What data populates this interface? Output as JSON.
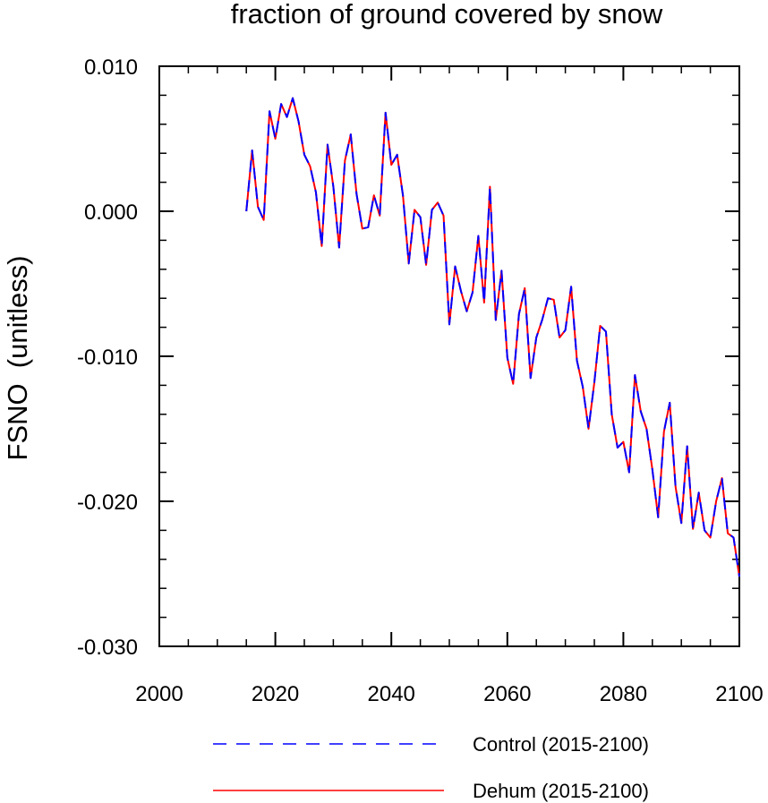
{
  "chart_data": {
    "type": "line",
    "title": "fraction of ground covered by snow",
    "xlabel": "",
    "ylabel": "FSNO  (unitless)",
    "xlim": [
      2000,
      2100
    ],
    "ylim": [
      -0.03,
      0.01
    ],
    "x_ticks": [
      2000,
      2020,
      2040,
      2060,
      2080,
      2100
    ],
    "x_tick_labels": [
      "2000",
      "2020",
      "2040",
      "2060",
      "2080",
      "2100"
    ],
    "y_ticks": [
      0.01,
      0.0,
      -0.01,
      -0.02,
      -0.03
    ],
    "y_tick_labels": [
      "0.010",
      "0.000",
      "-0.010",
      "-0.020",
      "-0.030"
    ],
    "grid": false,
    "legend_position": "bottom",
    "x": [
      2015,
      2016,
      2017,
      2018,
      2019,
      2020,
      2021,
      2022,
      2023,
      2024,
      2025,
      2026,
      2027,
      2028,
      2029,
      2030,
      2031,
      2032,
      2033,
      2034,
      2035,
      2036,
      2037,
      2038,
      2039,
      2040,
      2041,
      2042,
      2043,
      2044,
      2045,
      2046,
      2047,
      2048,
      2049,
      2050,
      2051,
      2052,
      2053,
      2054,
      2055,
      2056,
      2057,
      2058,
      2059,
      2060,
      2061,
      2062,
      2063,
      2064,
      2065,
      2066,
      2067,
      2068,
      2069,
      2070,
      2071,
      2072,
      2073,
      2074,
      2075,
      2076,
      2077,
      2078,
      2079,
      2080,
      2081,
      2082,
      2083,
      2084,
      2085,
      2086,
      2087,
      2088,
      2089,
      2090,
      2091,
      2092,
      2093,
      2094,
      2095,
      2096,
      2097,
      2098,
      2099,
      2100
    ],
    "series": [
      {
        "name": "Control (2015-2100)",
        "color": "#0000ff",
        "style": "dashed",
        "values": [
          0.0,
          0.0042,
          0.0003,
          -0.0006,
          0.0069,
          0.005,
          0.0074,
          0.0065,
          0.0078,
          0.0062,
          0.0039,
          0.0031,
          0.0013,
          -0.0024,
          0.0046,
          0.0017,
          -0.0025,
          0.0035,
          0.0053,
          0.0012,
          -0.0012,
          -0.0011,
          0.0011,
          -0.0003,
          0.0068,
          0.0032,
          0.0039,
          0.0011,
          -0.0036,
          0.0001,
          -0.0004,
          -0.0037,
          0.0001,
          0.0006,
          -0.0003,
          -0.0078,
          -0.0038,
          -0.0055,
          -0.0069,
          -0.0056,
          -0.0017,
          -0.0063,
          0.0017,
          -0.0075,
          -0.0041,
          -0.0101,
          -0.0119,
          -0.0071,
          -0.0053,
          -0.0115,
          -0.0087,
          -0.0075,
          -0.006,
          -0.0061,
          -0.0087,
          -0.0082,
          -0.0052,
          -0.0103,
          -0.0121,
          -0.015,
          -0.0118,
          -0.0079,
          -0.0083,
          -0.014,
          -0.0163,
          -0.0159,
          -0.018,
          -0.0113,
          -0.0138,
          -0.015,
          -0.0178,
          -0.0211,
          -0.0152,
          -0.0132,
          -0.019,
          -0.0215,
          -0.0162,
          -0.0219,
          -0.0194,
          -0.022,
          -0.0225,
          -0.02,
          -0.0184,
          -0.0222,
          -0.0225,
          -0.0252
        ]
      },
      {
        "name": "Dehum (2015-2100)",
        "color": "#ff0000",
        "style": "solid",
        "values": [
          0.0,
          0.0042,
          0.0003,
          -0.0006,
          0.0069,
          0.005,
          0.0074,
          0.0065,
          0.0078,
          0.0062,
          0.0039,
          0.0031,
          0.0013,
          -0.0024,
          0.0046,
          0.0017,
          -0.0025,
          0.0035,
          0.0053,
          0.0012,
          -0.0012,
          -0.0011,
          0.0011,
          -0.0003,
          0.0068,
          0.0032,
          0.0039,
          0.0011,
          -0.0036,
          0.0001,
          -0.0004,
          -0.0037,
          0.0001,
          0.0006,
          -0.0003,
          -0.0078,
          -0.0038,
          -0.0055,
          -0.0069,
          -0.0056,
          -0.0017,
          -0.0063,
          0.0017,
          -0.0075,
          -0.0041,
          -0.0101,
          -0.0119,
          -0.0071,
          -0.0053,
          -0.0115,
          -0.0087,
          -0.0075,
          -0.006,
          -0.0061,
          -0.0087,
          -0.0082,
          -0.0052,
          -0.0103,
          -0.0121,
          -0.015,
          -0.0118,
          -0.0079,
          -0.0083,
          -0.014,
          -0.0163,
          -0.0159,
          -0.018,
          -0.0113,
          -0.0138,
          -0.015,
          -0.0178,
          -0.0211,
          -0.0152,
          -0.0132,
          -0.019,
          -0.0215,
          -0.0162,
          -0.0219,
          -0.0194,
          -0.022,
          -0.0225,
          -0.02,
          -0.0184,
          -0.0222,
          -0.0225,
          -0.0252
        ]
      }
    ]
  }
}
